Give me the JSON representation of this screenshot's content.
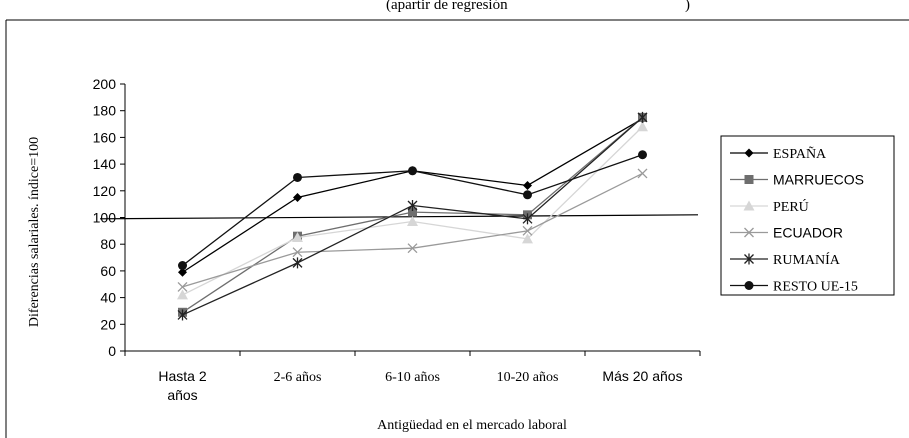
{
  "chart_data": {
    "type": "line",
    "title_fragment": "(apartir de regresión",
    "title_fragment_end": ")",
    "xlabel": "Antigüedad en el mercado laboral",
    "ylabel": "Diferencias salariales. índice=100",
    "categories": [
      "Hasta 2 años",
      "2-6 años",
      "6-10 años",
      "10-20 años",
      "Más 20 años"
    ],
    "ylim": [
      0,
      200
    ],
    "yticks": [
      0,
      20,
      40,
      60,
      80,
      100,
      120,
      140,
      160,
      180,
      200
    ],
    "reference_line": {
      "from": 99,
      "to": 102
    },
    "legend_position": "right",
    "series": [
      {
        "name": "ESPAÑA",
        "values": [
          59,
          115,
          135,
          124,
          174
        ],
        "color": "#000000",
        "marker": "diamond",
        "label_font": "serif"
      },
      {
        "name": "MARRUECOS",
        "values": [
          29,
          86,
          104,
          102,
          175
        ],
        "color": "#6e6e6e",
        "marker": "square",
        "label_font": "sans"
      },
      {
        "name": "PERÚ",
        "values": [
          42,
          85,
          97,
          84,
          168
        ],
        "color": "#d6d6d6",
        "marker": "triangle",
        "label_font": "serif"
      },
      {
        "name": "ECUADOR",
        "values": [
          48,
          74,
          77,
          90,
          133
        ],
        "color": "#9a9a9a",
        "marker": "x",
        "label_font": "sans"
      },
      {
        "name": "RUMANÍA",
        "values": [
          27,
          66,
          109,
          99,
          175
        ],
        "color": "#222222",
        "marker": "star",
        "label_font": "serif"
      },
      {
        "name": "RESTO UE-15",
        "values": [
          64,
          130,
          135,
          117,
          147
        ],
        "color": "#111111",
        "marker": "circle",
        "label_font": "serif"
      }
    ]
  }
}
